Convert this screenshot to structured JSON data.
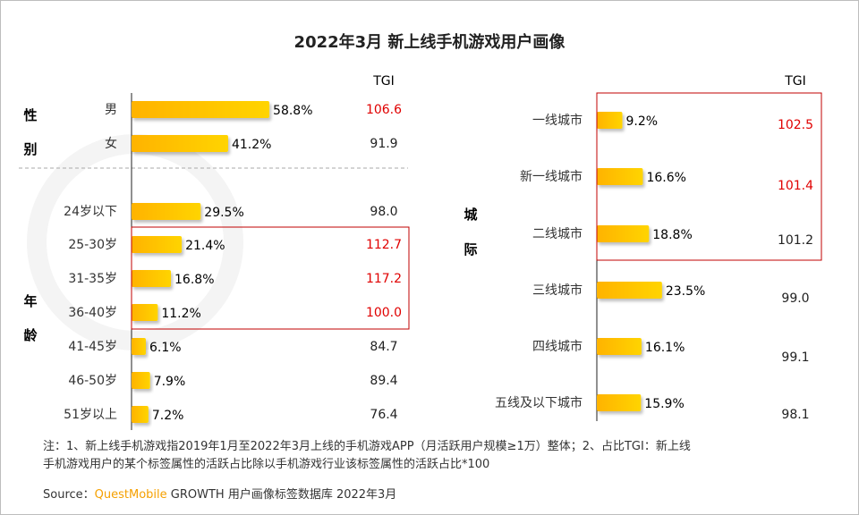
{
  "title": "2022年3月 新上线手机游戏用户画像",
  "colors": {
    "bar_start": "#ffb300",
    "bar_end": "#ffd400",
    "highlight": "#e00000",
    "box": "#c00000",
    "brand": "#f5a000"
  },
  "watermark": "QUEST MOBILE",
  "chart_data": [
    {
      "type": "bar",
      "orientation": "horizontal",
      "tgi_header": "TGI",
      "groups": [
        {
          "label": [
            "性",
            "别"
          ],
          "categories": [
            "男",
            "女"
          ],
          "values": [
            58.8,
            41.2
          ],
          "value_labels": [
            "58.8%",
            "41.2%"
          ],
          "tgi": [
            "106.6",
            "91.9"
          ],
          "tgi_highlight": [
            true,
            false
          ]
        },
        {
          "label": [
            "年",
            "龄"
          ],
          "categories": [
            "24岁以下",
            "25-30岁",
            "31-35岁",
            "36-40岁",
            "41-45岁",
            "46-50岁",
            "51岁以上"
          ],
          "values": [
            29.5,
            21.4,
            16.8,
            11.2,
            6.1,
            7.9,
            7.2
          ],
          "value_labels": [
            "29.5%",
            "21.4%",
            "16.8%",
            "11.2%",
            "6.1%",
            "7.9%",
            "7.2%"
          ],
          "tgi": [
            "98.0",
            "112.7",
            "117.2",
            "100.0",
            "84.7",
            "89.4",
            "76.4"
          ],
          "tgi_highlight": [
            false,
            true,
            true,
            true,
            false,
            false,
            false
          ]
        }
      ],
      "highlight_box": [
        "25-30岁",
        "36-40岁"
      ]
    },
    {
      "type": "bar",
      "orientation": "horizontal",
      "tgi_header": "TGI",
      "groups": [
        {
          "label": [
            "城",
            "际"
          ],
          "categories": [
            "一线城市",
            "新一线城市",
            "二线城市",
            "三线城市",
            "四线城市",
            "五线及以下城市"
          ],
          "values": [
            9.2,
            16.6,
            18.8,
            23.5,
            16.1,
            15.9
          ],
          "value_labels": [
            "9.2%",
            "16.6%",
            "18.8%",
            "23.5%",
            "16.1%",
            "15.9%"
          ],
          "tgi": [
            "102.5",
            "101.4",
            "101.2",
            "99.0",
            "99.1",
            "98.1"
          ],
          "tgi_highlight": [
            true,
            true,
            false,
            false,
            false,
            false
          ]
        }
      ],
      "highlight_box": [
        "一线城市",
        "二线城市"
      ]
    }
  ],
  "notes": {
    "line1": "注：1、新上线手机游戏指2019年1月至2022年3月上线的手机游戏APP（月活跃用户规模≥1万）整体；2、占比TGI：新上线",
    "line2": "手机游戏用户的某个标签属性的活跃占比除以手机游戏行业该标签属性的活跃占比*100",
    "source_prefix": "Source：",
    "source_brand": "QuestMobile",
    "source_rest": " GROWTH 用户画像标签数据库 2022年3月"
  }
}
